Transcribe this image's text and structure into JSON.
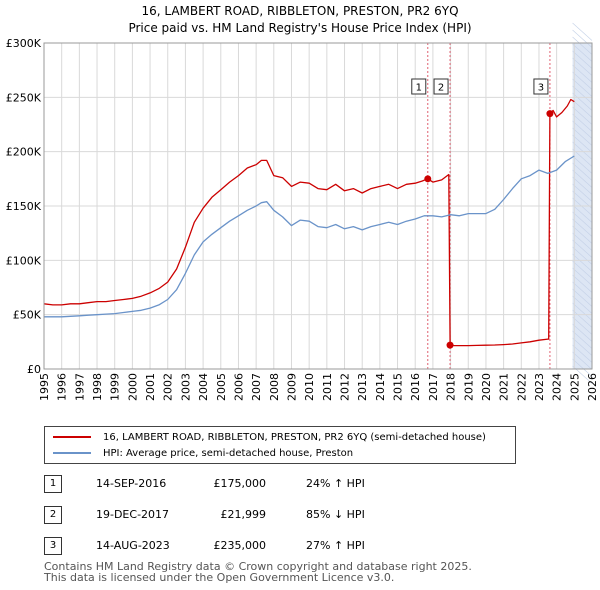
{
  "title": {
    "line1": "16, LAMBERT ROAD, RIBBLETON, PRESTON, PR2 6YQ",
    "line2": "Price paid vs. HM Land Registry's House Price Index (HPI)"
  },
  "legend": {
    "property_label": "16, LAMBERT ROAD, RIBBLETON, PRESTON, PR2 6YQ (semi-detached house)",
    "hpi_label": "HPI: Average price, semi-detached house, Preston"
  },
  "transactions": [
    {
      "num": "1",
      "date": "14-SEP-2016",
      "price": "£175,000",
      "hpi": "24% ↑ HPI"
    },
    {
      "num": "2",
      "date": "19-DEC-2017",
      "price": "£21,999",
      "hpi": "85% ↓ HPI"
    },
    {
      "num": "3",
      "date": "14-AUG-2023",
      "price": "£235,000",
      "hpi": "27% ↑ HPI"
    }
  ],
  "footer": {
    "line1": "Contains HM Land Registry data © Crown copyright and database right 2025.",
    "line2": "This data is licensed under the Open Government Licence v3.0."
  },
  "colors": {
    "property": "#cc0000",
    "hpi": "#6a93c9",
    "marker_line": "#e06070",
    "future_band": "#dde6f4",
    "grid": "#d9d9d9"
  },
  "chart_data": {
    "type": "line",
    "title": "Price paid vs. HM Land Registry's House Price Index (HPI)",
    "xlabel": "",
    "ylabel": "",
    "xlim": [
      1995,
      2026
    ],
    "ylim": [
      0,
      300000
    ],
    "x_ticks": [
      1995,
      1996,
      1997,
      1998,
      1999,
      2000,
      2001,
      2002,
      2003,
      2004,
      2005,
      2006,
      2007,
      2008,
      2009,
      2010,
      2011,
      2012,
      2013,
      2014,
      2015,
      2016,
      2017,
      2018,
      2019,
      2020,
      2021,
      2022,
      2023,
      2024,
      2025,
      2026
    ],
    "x_tick_labels": [
      "1995",
      "1996",
      "1997",
      "1998",
      "1999",
      "2000",
      "2001",
      "2002",
      "2003",
      "2004",
      "2005",
      "2006",
      "2007",
      "2008",
      "2009",
      "2010",
      "2011",
      "2012",
      "2013",
      "2014",
      "2015",
      "2016",
      "2017",
      "2018",
      "2019",
      "2020",
      "2021",
      "2022",
      "2023",
      "2024",
      "2025",
      "2026"
    ],
    "y_ticks": [
      0,
      50000,
      100000,
      150000,
      200000,
      250000,
      300000
    ],
    "y_tick_labels": [
      "£0",
      "£50K",
      "£100K",
      "£150K",
      "£200K",
      "£250K",
      "£300K"
    ],
    "grid": true,
    "future_band_x": [
      2024.9,
      2026
    ],
    "series": [
      {
        "name": "16, LAMBERT ROAD, RIBBLETON, PRESTON, PR2 6YQ (semi-detached house)",
        "x": [
          1995.0,
          1995.5,
          1996.0,
          1996.5,
          1997.0,
          1997.5,
          1998.0,
          1998.5,
          1999.0,
          1999.5,
          2000.0,
          2000.5,
          2001.0,
          2001.5,
          2002.0,
          2002.5,
          2003.0,
          2003.5,
          2004.0,
          2004.5,
          2005.0,
          2005.5,
          2006.0,
          2006.5,
          2007.0,
          2007.3,
          2007.6,
          2008.0,
          2008.5,
          2009.0,
          2009.5,
          2010.0,
          2010.5,
          2011.0,
          2011.5,
          2012.0,
          2012.5,
          2013.0,
          2013.5,
          2014.0,
          2014.5,
          2015.0,
          2015.5,
          2016.0,
          2016.4,
          2016.7,
          2017.0,
          2017.5,
          2017.9,
          2017.97,
          2018.2,
          2018.5,
          2019.0,
          2019.5,
          2020.0,
          2020.5,
          2021.0,
          2021.5,
          2022.0,
          2022.5,
          2023.0,
          2023.5,
          2023.55,
          2023.62,
          2023.8,
          2024.0,
          2024.3,
          2024.6,
          2024.8,
          2025.0
        ],
        "values": [
          60000,
          59000,
          59000,
          60000,
          60000,
          61000,
          62000,
          62000,
          63000,
          64000,
          65000,
          67000,
          70000,
          74000,
          80000,
          92000,
          112000,
          135000,
          148000,
          158000,
          165000,
          172000,
          178000,
          185000,
          188000,
          192000,
          192000,
          178000,
          176000,
          168000,
          172000,
          171000,
          166000,
          165000,
          170000,
          164000,
          166000,
          162000,
          166000,
          168000,
          170000,
          166000,
          170000,
          171000,
          173000,
          175000,
          172000,
          174000,
          179000,
          21999,
          21500,
          21500,
          21500,
          21700,
          21900,
          22100,
          22500,
          23000,
          24000,
          25000,
          26500,
          27500,
          27500,
          235000,
          238000,
          232000,
          236000,
          242000,
          248000,
          246000
        ],
        "color": "#cc0000"
      },
      {
        "name": "HPI: Average price, semi-detached house, Preston",
        "x": [
          1995.0,
          1995.5,
          1996.0,
          1996.5,
          1997.0,
          1997.5,
          1998.0,
          1998.5,
          1999.0,
          1999.5,
          2000.0,
          2000.5,
          2001.0,
          2001.5,
          2002.0,
          2002.5,
          2003.0,
          2003.5,
          2004.0,
          2004.5,
          2005.0,
          2005.5,
          2006.0,
          2006.5,
          2007.0,
          2007.3,
          2007.6,
          2008.0,
          2008.5,
          2009.0,
          2009.5,
          2010.0,
          2010.5,
          2011.0,
          2011.5,
          2012.0,
          2012.5,
          2013.0,
          2013.5,
          2014.0,
          2014.5,
          2015.0,
          2015.5,
          2016.0,
          2016.5,
          2017.0,
          2017.5,
          2018.0,
          2018.5,
          2019.0,
          2019.5,
          2020.0,
          2020.5,
          2021.0,
          2021.5,
          2022.0,
          2022.5,
          2023.0,
          2023.5,
          2024.0,
          2024.5,
          2025.0
        ],
        "values": [
          48000,
          48000,
          48000,
          48500,
          49000,
          49500,
          50000,
          50500,
          51000,
          52000,
          53000,
          54000,
          56000,
          59000,
          64000,
          73000,
          88000,
          105000,
          117000,
          124000,
          130000,
          136000,
          141000,
          146000,
          150000,
          153000,
          154000,
          146000,
          140000,
          132000,
          137000,
          136000,
          131000,
          130000,
          133000,
          129000,
          131000,
          128000,
          131000,
          133000,
          135000,
          133000,
          136000,
          138000,
          141000,
          141000,
          140000,
          142000,
          141000,
          143000,
          143000,
          143000,
          147000,
          156000,
          166000,
          175000,
          178000,
          183000,
          180000,
          183000,
          191000,
          196000
        ],
        "color": "#6a93c9"
      }
    ],
    "annotations": [
      {
        "label": "1",
        "x": 2016.71,
        "y": 175000
      },
      {
        "label": "2",
        "x": 2017.97,
        "y": 21999
      },
      {
        "label": "3",
        "x": 2023.62,
        "y": 235000
      }
    ]
  }
}
